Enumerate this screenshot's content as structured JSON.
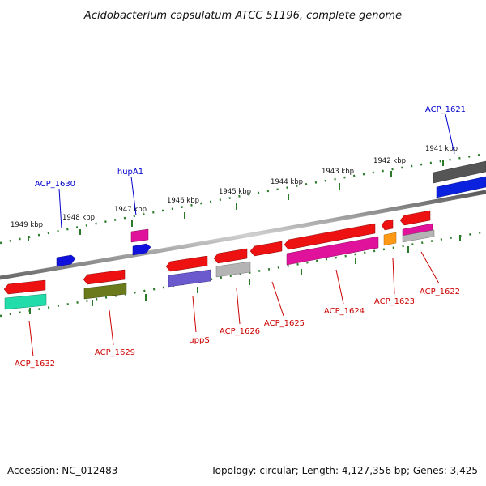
{
  "title": "Acidobacterium capsulatum ATCC 51196, complete genome",
  "footer": {
    "accession": "Accession: NC_012483",
    "topology": "Topology: circular; Length: 4,127,356 bp; Genes: 3,425"
  },
  "colors": {
    "forward_label": "#0000cc",
    "reverse_label": "#cc0000",
    "backbone": "#808080",
    "ticks": "#2a7a2a"
  },
  "kbp_labels": [
    "1949 kbp",
    "1948 kbp",
    "1947 kbp",
    "1946 kbp",
    "1945 kbp",
    "1944 kbp",
    "1943 kbp",
    "1942 kbp",
    "1941 kbp"
  ],
  "forward_labels": [
    "ACP_1630",
    "hupA1",
    "ACP_1621"
  ],
  "reverse_labels": [
    "ACP_1632",
    "ACP_1629",
    "uppS",
    "ACP_1626",
    "ACP_1625",
    "ACP_1624",
    "ACP_1623",
    "ACP_1622"
  ]
}
